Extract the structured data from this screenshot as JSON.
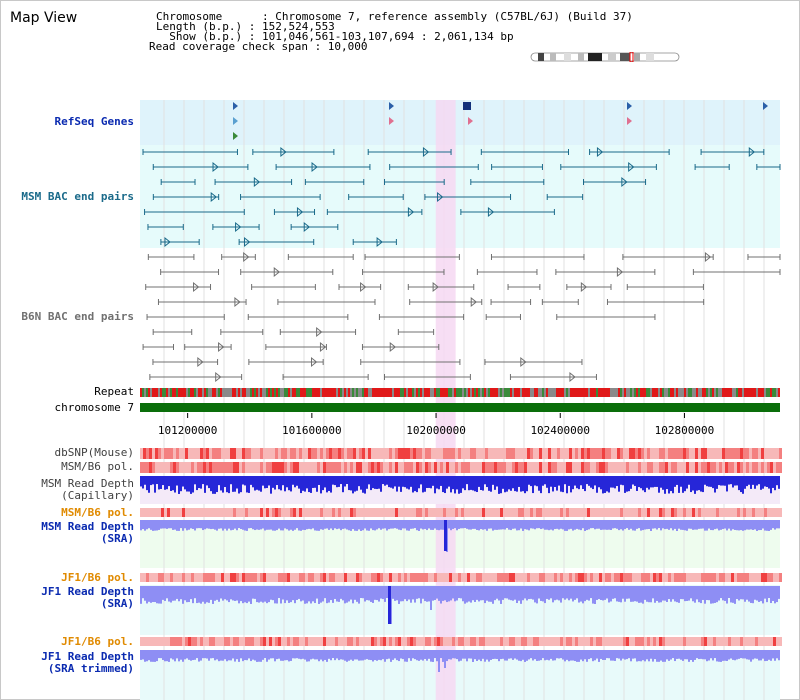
{
  "header": {
    "title": "Map View",
    "chromosome_line": "Chromosome      : Chromosome 7, reference assembly (C57BL/6J) (Build 37)",
    "length_line": "Length (b.p.) : 152,524,553",
    "show_line": "  Show (b.p.) : 101,046,561-103,107,694 : 2,061,134 bp",
    "coverage_line": "Read coverage check span : 10,000"
  },
  "tracks": {
    "refseq": "RefSeq Genes",
    "msm_bac": "MSM BAC end pairs",
    "b6n_bac": "B6N BAC end pairs",
    "repeat": "Repeat",
    "chromosome": "chromosome 7",
    "dbsnp": "dbSNP(Mouse)",
    "msm_b6_pol_1": "MSM/B6 pol.",
    "msm_read_depth_cap_1": "MSM Read Depth",
    "msm_read_depth_cap_2": "(Capillary)",
    "msm_b6_pol_2": "MSM/B6 pol.",
    "msm_read_depth_sra_1": "MSM Read Depth",
    "msm_read_depth_sra_2": "(SRA)",
    "jf1_b6_pol_1": "JF1/B6 pol.",
    "jf1_read_depth_sra_1": "JF1 Read Depth",
    "jf1_read_depth_sra_2": "(SRA)",
    "jf1_b6_pol_2": "JF1/B6 pol.",
    "jf1_read_depth_trim_1": "JF1 Read Depth",
    "jf1_read_depth_trim_2": "(SRA trimmed)"
  },
  "axis": {
    "ticks": [
      {
        "pos": 101200000,
        "label": "101200000"
      },
      {
        "pos": 101600000,
        "label": "101600000"
      },
      {
        "pos": 102000000,
        "label": "102000000"
      },
      {
        "pos": 102400000,
        "label": "102400000"
      },
      {
        "pos": 102800000,
        "label": "102800000"
      }
    ],
    "start": 101046561,
    "end": 103107694,
    "highlight": [
      101999000,
      102063000
    ]
  },
  "colors": {
    "refseq_bg": "#dff3fb",
    "bac_bg": "#e6fbfb",
    "highlight": "#f6d8f2",
    "chromosome_bar": "#0a6e0a",
    "repeat_red": "#e01818",
    "repeat_green": "#3a8a3a",
    "depth_blue": "#2626d8",
    "depth_light": "#8e8ef4",
    "pol_light": "#f7b8b8",
    "pol_dark": "#f04040",
    "msm_track": "#1a6a8a",
    "b6n_track": "#707070"
  }
}
